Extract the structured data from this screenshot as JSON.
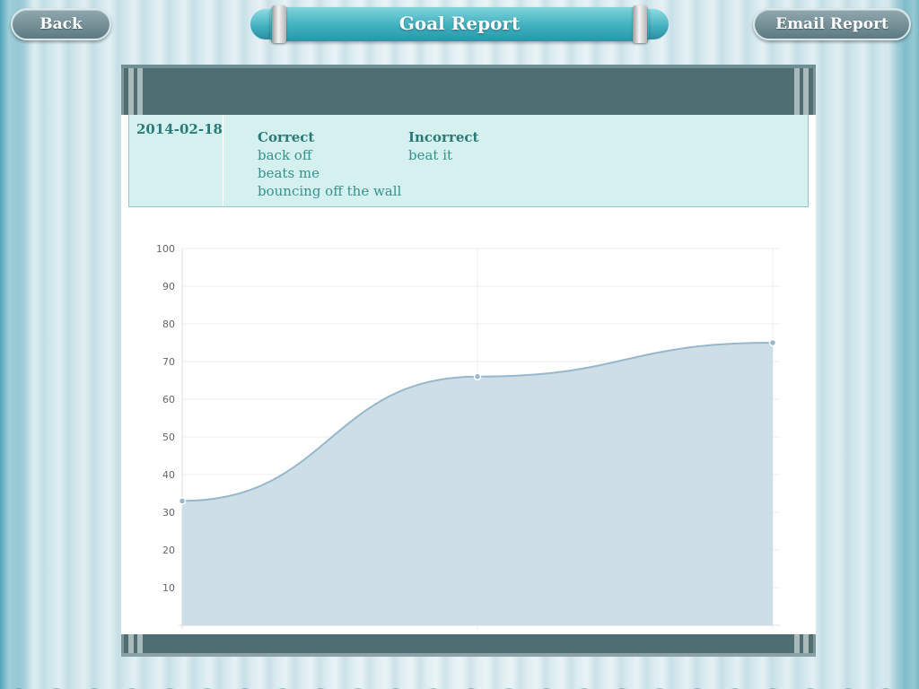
{
  "header": {
    "title": "Goal Report",
    "back_label": "Back",
    "email_label": "Email Report"
  },
  "entries": [
    {
      "date": "2014-02-18",
      "correct_heading": "Correct",
      "correct": [
        "back off",
        "beats me",
        "bouncing off the wall"
      ],
      "incorrect_heading": "Incorrect",
      "incorrect": [
        "beat it"
      ]
    }
  ],
  "colors": {
    "accent": "#3fb0bf",
    "board_bar": "#4f6e72",
    "entry_bg": "#d5f1ef",
    "entry_text": "#2b7a78",
    "area_fill": "#cbdce6",
    "area_line": "#97b8cc"
  },
  "chart_data": {
    "type": "area",
    "title": "",
    "xlabel": "",
    "ylabel": "",
    "x": [
      "",
      "",
      ""
    ],
    "values": [
      33,
      66,
      75
    ],
    "ylim": [
      0,
      100
    ],
    "yticks": [
      10,
      20,
      30,
      40,
      50,
      60,
      70,
      80,
      90,
      100
    ],
    "grid": true,
    "smooth": true
  }
}
